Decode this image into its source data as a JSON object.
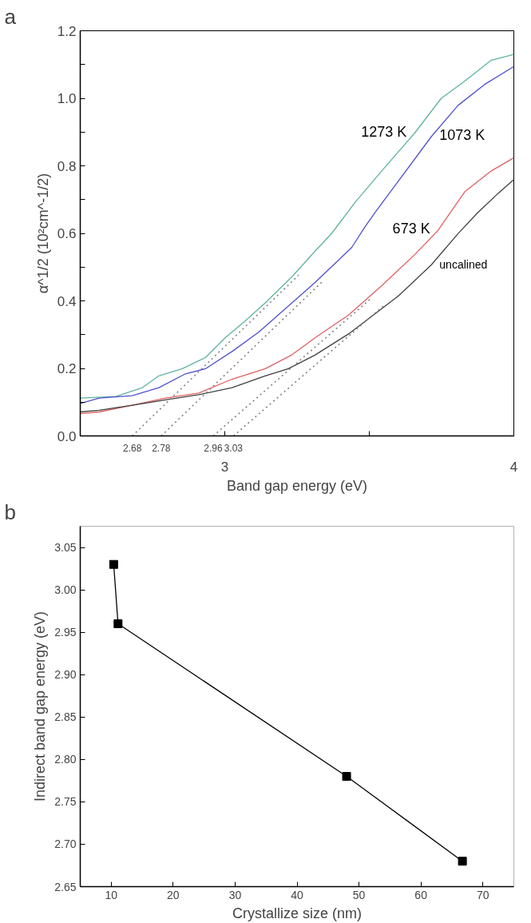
{
  "chart_data": [
    {
      "type": "line",
      "title": "a",
      "xlabel": "Band gap energy (eV)",
      "ylabel": "α^1/2 (10²cm^-1/2)",
      "xlim": [
        2.5,
        4
      ],
      "xticks": [
        3,
        {
          "value": 3.5,
          "label": null
        },
        4
      ],
      "ylim": [
        0,
        1.2
      ],
      "yticks": [
        {
          "value": 0,
          "label": "0.0"
        },
        {
          "value": 0.1,
          "label": null
        },
        0.2,
        {
          "value": 0.3,
          "label": null
        },
        0.4,
        {
          "value": 0.5,
          "label": null
        },
        0.6,
        {
          "value": 0.7,
          "label": null
        },
        0.8,
        {
          "value": 0.9,
          "label": null
        },
        {
          "value": 1,
          "label": "1.0"
        },
        {
          "value": 1.1,
          "label": null
        },
        1.2
      ],
      "series": [
        {
          "name": "1273 K",
          "color": "#5fb3a0",
          "x": [
            2.5,
            2.623,
            2.715,
            2.772,
            2.853,
            2.933,
            3.002,
            3.071,
            3.14,
            3.232,
            3.313,
            3.37,
            3.451,
            3.543,
            3.657,
            3.749,
            3.83,
            3.922,
            4.0
          ],
          "values": [
            0.112,
            0.117,
            0.143,
            0.178,
            0.199,
            0.232,
            0.291,
            0.341,
            0.394,
            0.471,
            0.548,
            0.6,
            0.692,
            0.785,
            0.897,
            1.0,
            1.051,
            1.113,
            1.13
          ]
        },
        {
          "name": "1073 K",
          "color": "#5050d0",
          "x": [
            2.5,
            2.566,
            2.68,
            2.772,
            2.864,
            2.933,
            3.025,
            3.117,
            3.198,
            3.313,
            3.439,
            3.485,
            3.52,
            3.6,
            3.715,
            3.807,
            3.899,
            4.0
          ],
          "values": [
            0.096,
            0.112,
            0.119,
            0.143,
            0.184,
            0.199,
            0.25,
            0.307,
            0.368,
            0.455,
            0.558,
            0.619,
            0.662,
            0.754,
            0.887,
            0.979,
            1.041,
            1.094
          ]
        },
        {
          "name": "673 K",
          "color": "#e06060",
          "x": [
            2.5,
            2.566,
            2.68,
            2.795,
            2.91,
            3.025,
            3.14,
            3.232,
            3.313,
            3.428,
            3.543,
            3.657,
            3.738,
            3.83,
            3.922,
            4.0
          ],
          "values": [
            0.066,
            0.071,
            0.091,
            0.112,
            0.127,
            0.168,
            0.199,
            0.24,
            0.291,
            0.358,
            0.445,
            0.537,
            0.609,
            0.723,
            0.785,
            0.824
          ]
        },
        {
          "name": "uncalined",
          "color": "#404040",
          "x": [
            2.5,
            2.566,
            2.68,
            2.795,
            2.91,
            3.025,
            3.14,
            3.22,
            3.313,
            3.428,
            3.6,
            3.715,
            3.807,
            3.876,
            3.945,
            4.0
          ],
          "values": [
            0.071,
            0.076,
            0.091,
            0.107,
            0.122,
            0.143,
            0.178,
            0.199,
            0.24,
            0.302,
            0.414,
            0.507,
            0.599,
            0.662,
            0.718,
            0.759
          ]
        },
        {
          "color": "#808080",
          "line_style": "dotted",
          "x": [
            2.68,
            3.255
          ],
          "values": [
            0,
            0.476
          ]
        },
        {
          "color": "#808080",
          "line_style": "dotted",
          "x": [
            2.78,
            3.341
          ],
          "values": [
            0,
            0.46
          ]
        },
        {
          "color": "#808080",
          "line_style": "dotted",
          "x": [
            2.96,
            3.508
          ],
          "values": [
            0,
            0.409
          ]
        },
        {
          "color": "#808080",
          "line_style": "dotted",
          "x": [
            3.03,
            3.554
          ],
          "values": [
            0,
            0.389
          ]
        }
      ],
      "annotations": [
        {
          "text": "2.68",
          "x": 2.68,
          "y": 0
        },
        {
          "text": "2.78",
          "x": 2.78,
          "y": 0
        },
        {
          "text": "2.96",
          "x": 2.96,
          "y": 0
        },
        {
          "text": "3.03",
          "x": 3.03,
          "y": 0
        }
      ]
    },
    {
      "type": "line",
      "title": "b",
      "xlabel": "Crystallize size (nm)",
      "ylabel": "Indirect band gap energy (eV)",
      "marker": "square",
      "xlim": [
        5,
        75
      ],
      "xticks": [
        10,
        20,
        30,
        40,
        50,
        60,
        70
      ],
      "ylim": [
        2.65,
        3.075
      ],
      "yticks": [
        2.65,
        {
          "value": 2.7,
          "label": "2.70"
        },
        2.75,
        {
          "value": 2.8,
          "label": "2.80"
        },
        2.85,
        {
          "value": 2.9,
          "label": "2.90"
        },
        2.95,
        {
          "value": 3,
          "label": "3.00"
        },
        3.05
      ],
      "series": [
        {
          "color": "#000000",
          "x": [
            10.4,
            11.1,
            48,
            66.7
          ],
          "values": [
            3.03,
            2.96,
            2.78,
            2.68
          ]
        }
      ]
    }
  ]
}
